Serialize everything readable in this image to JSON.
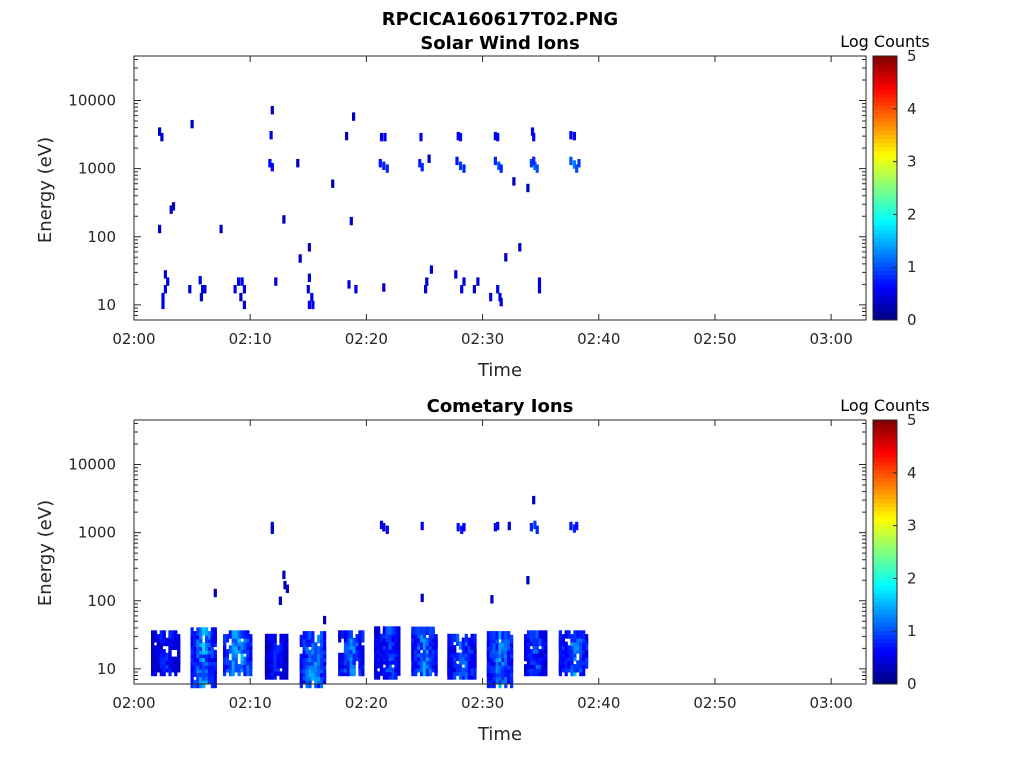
{
  "figure": {
    "title": "RPCICA160617T02.PNG"
  },
  "chart_data": [
    {
      "type": "heatmap",
      "title": "Solar Wind Ions",
      "xlabel": "Time",
      "ylabel": "Energy (eV)",
      "x_ticks": [
        "02:00",
        "02:10",
        "02:20",
        "02:30",
        "02:40",
        "02:50",
        "03:00"
      ],
      "xlim_minutes": [
        0,
        63
      ],
      "y_ticks": [
        "10",
        "100",
        "1000",
        "10000"
      ],
      "y_scale": "log",
      "ylim": [
        6,
        45000
      ],
      "colorbar": {
        "label": "Log Counts",
        "ticks": [
          "0",
          "1",
          "2",
          "3",
          "4",
          "5"
        ],
        "range": [
          0,
          5
        ],
        "colormap": "jet"
      },
      "cells": [
        [
          2.2,
          3500,
          0.3
        ],
        [
          2.4,
          2900,
          0.4
        ],
        [
          2.2,
          130,
          0.3
        ],
        [
          3.2,
          250,
          0.3
        ],
        [
          3.4,
          280,
          0.3
        ],
        [
          2.5,
          10,
          0.5
        ],
        [
          2.5,
          13,
          0.5
        ],
        [
          2.7,
          17,
          0.5
        ],
        [
          2.9,
          22,
          0.5
        ],
        [
          2.7,
          28,
          0.4
        ],
        [
          5.0,
          4500,
          0.3
        ],
        [
          4.8,
          17,
          0.5
        ],
        [
          5.7,
          23,
          0.5
        ],
        [
          5.9,
          17,
          0.5
        ],
        [
          6.1,
          17,
          0.4
        ],
        [
          5.8,
          13,
          0.4
        ],
        [
          7.5,
          130,
          0.3
        ],
        [
          8.7,
          17,
          0.5
        ],
        [
          9.0,
          22,
          0.5
        ],
        [
          9.3,
          22,
          0.6
        ],
        [
          9.5,
          17,
          0.5
        ],
        [
          9.2,
          13,
          0.4
        ],
        [
          9.5,
          10,
          0.4
        ],
        [
          11.9,
          7200,
          0.3
        ],
        [
          11.8,
          3100,
          0.5
        ],
        [
          11.7,
          1200,
          0.6
        ],
        [
          11.9,
          1050,
          0.6
        ],
        [
          12.2,
          22,
          0.4
        ],
        [
          12.9,
          180,
          0.3
        ],
        [
          14.1,
          1200,
          0.3
        ],
        [
          14.3,
          48,
          0.3
        ],
        [
          15.1,
          70,
          0.3
        ],
        [
          15.1,
          25,
          0.4
        ],
        [
          15.0,
          17,
          0.5
        ],
        [
          15.3,
          13,
          0.5
        ],
        [
          15.1,
          10,
          0.6
        ],
        [
          15.4,
          10,
          0.5
        ],
        [
          17.1,
          600,
          0.3
        ],
        [
          18.3,
          3000,
          0.3
        ],
        [
          18.9,
          5800,
          0.3
        ],
        [
          18.7,
          170,
          0.3
        ],
        [
          18.5,
          20,
          0.4
        ],
        [
          19.1,
          17,
          0.4
        ],
        [
          21.3,
          2900,
          0.6
        ],
        [
          21.6,
          2900,
          0.6
        ],
        [
          21.2,
          1200,
          0.7
        ],
        [
          21.5,
          1100,
          0.8
        ],
        [
          21.8,
          1000,
          0.8
        ],
        [
          21.5,
          18,
          0.4
        ],
        [
          24.7,
          2900,
          0.6
        ],
        [
          24.6,
          1200,
          0.8
        ],
        [
          24.8,
          1050,
          0.8
        ],
        [
          25.4,
          1400,
          0.3
        ],
        [
          25.6,
          33,
          0.4
        ],
        [
          25.2,
          22,
          0.4
        ],
        [
          25.1,
          17,
          0.5
        ],
        [
          27.9,
          3000,
          0.6
        ],
        [
          28.1,
          2900,
          0.6
        ],
        [
          27.8,
          1300,
          0.7
        ],
        [
          28.1,
          1100,
          0.9
        ],
        [
          28.4,
          1000,
          0.8
        ],
        [
          27.7,
          28,
          0.4
        ],
        [
          28.4,
          22,
          0.4
        ],
        [
          28.2,
          17,
          0.5
        ],
        [
          29.3,
          17,
          0.4
        ],
        [
          29.6,
          22,
          0.4
        ],
        [
          31.1,
          3000,
          0.6
        ],
        [
          31.3,
          2900,
          0.6
        ],
        [
          31.1,
          1300,
          0.8
        ],
        [
          31.4,
          1100,
          1.0
        ],
        [
          31.6,
          1000,
          0.8
        ],
        [
          30.7,
          13,
          0.5
        ],
        [
          31.3,
          17,
          0.5
        ],
        [
          31.5,
          13,
          0.5
        ],
        [
          31.6,
          11,
          0.5
        ],
        [
          32.0,
          50,
          0.3
        ],
        [
          33.2,
          70,
          0.3
        ],
        [
          32.7,
          650,
          0.3
        ],
        [
          33.9,
          520,
          0.3
        ],
        [
          34.3,
          3500,
          0.6
        ],
        [
          34.4,
          2900,
          0.6
        ],
        [
          34.2,
          1200,
          0.9
        ],
        [
          34.5,
          1100,
          1.1
        ],
        [
          34.7,
          1000,
          1.0
        ],
        [
          34.4,
          1300,
          0.8
        ],
        [
          34.9,
          22,
          0.5
        ],
        [
          34.9,
          17,
          0.5
        ],
        [
          37.6,
          3100,
          0.6
        ],
        [
          37.9,
          3000,
          0.6
        ],
        [
          37.6,
          1300,
          1.0
        ],
        [
          37.9,
          1150,
          1.2
        ],
        [
          38.1,
          1000,
          1.0
        ],
        [
          38.3,
          1200,
          0.9
        ]
      ]
    },
    {
      "type": "heatmap",
      "title": "Cometary Ions",
      "xlabel": "Time",
      "ylabel": "Energy (eV)",
      "x_ticks": [
        "02:00",
        "02:10",
        "02:20",
        "02:30",
        "02:40",
        "02:50",
        "03:00"
      ],
      "xlim_minutes": [
        0,
        63
      ],
      "y_ticks": [
        "10",
        "100",
        "1000",
        "10000"
      ],
      "y_scale": "log",
      "ylim": [
        6,
        45000
      ],
      "colorbar": {
        "label": "Log Counts",
        "ticks": [
          "0",
          "1",
          "2",
          "3",
          "4",
          "5"
        ],
        "range": [
          0,
          5
        ],
        "colormap": "jet"
      },
      "clusters": [
        {
          "t": 2.8,
          "half_width": 1.2,
          "e_min": 9,
          "e_max": 35,
          "peak": 0.9
        },
        {
          "t": 6.0,
          "half_width": 1.0,
          "e_min": 6,
          "e_max": 38,
          "peak": 1.6
        },
        {
          "t": 9.0,
          "half_width": 1.2,
          "e_min": 9,
          "e_max": 35,
          "peak": 1.7
        },
        {
          "t": 12.3,
          "half_width": 0.9,
          "e_min": 8,
          "e_max": 30,
          "peak": 0.9
        },
        {
          "t": 15.5,
          "half_width": 1.1,
          "e_min": 6,
          "e_max": 35,
          "peak": 1.6
        },
        {
          "t": 18.8,
          "half_width": 1.1,
          "e_min": 9,
          "e_max": 32,
          "peak": 1.4
        },
        {
          "t": 21.9,
          "half_width": 1.1,
          "e_min": 8,
          "e_max": 38,
          "peak": 1.1
        },
        {
          "t": 25.0,
          "half_width": 1.0,
          "e_min": 9,
          "e_max": 38,
          "peak": 1.5
        },
        {
          "t": 28.3,
          "half_width": 1.2,
          "e_min": 8,
          "e_max": 30,
          "peak": 1.3
        },
        {
          "t": 31.6,
          "half_width": 1.1,
          "e_min": 6,
          "e_max": 32,
          "peak": 1.5
        },
        {
          "t": 34.6,
          "half_width": 0.9,
          "e_min": 9,
          "e_max": 32,
          "peak": 1.2
        },
        {
          "t": 37.9,
          "half_width": 1.2,
          "e_min": 9,
          "e_max": 32,
          "peak": 1.5
        }
      ],
      "cells": [
        [
          11.9,
          1250,
          0.4
        ],
        [
          11.9,
          1100,
          0.4
        ],
        [
          12.9,
          240,
          0.3
        ],
        [
          13.0,
          170,
          0.3
        ],
        [
          13.2,
          150,
          0.3
        ],
        [
          12.6,
          100,
          0.3
        ],
        [
          7.0,
          130,
          0.3
        ],
        [
          16.4,
          52,
          0.3
        ],
        [
          21.5,
          1200,
          0.5
        ],
        [
          21.8,
          1100,
          0.5
        ],
        [
          21.3,
          1300,
          0.4
        ],
        [
          24.8,
          1250,
          0.6
        ],
        [
          24.8,
          110,
          0.3
        ],
        [
          27.9,
          1200,
          0.7
        ],
        [
          28.2,
          1100,
          0.7
        ],
        [
          28.4,
          1200,
          0.6
        ],
        [
          30.8,
          105,
          0.3
        ],
        [
          31.1,
          1200,
          0.5
        ],
        [
          31.3,
          1250,
          0.5
        ],
        [
          32.3,
          1250,
          0.4
        ],
        [
          33.9,
          200,
          0.3
        ],
        [
          34.4,
          3000,
          0.3
        ],
        [
          34.2,
          1200,
          0.8
        ],
        [
          34.5,
          1300,
          0.9
        ],
        [
          34.7,
          1100,
          0.8
        ],
        [
          37.6,
          1250,
          0.7
        ],
        [
          37.9,
          1150,
          0.8
        ],
        [
          38.1,
          1250,
          0.7
        ]
      ]
    }
  ]
}
